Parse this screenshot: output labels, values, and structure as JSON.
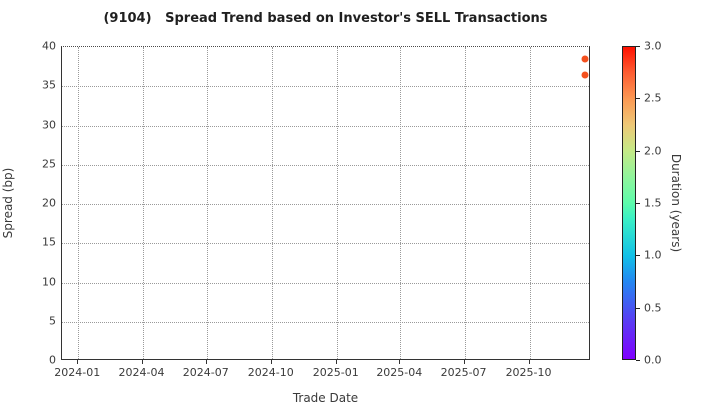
{
  "title": "(9104)   Spread Trend based on Investor's SELL Transactions",
  "colors": {
    "point": "#f4511f",
    "grid": "#9a9a9a",
    "spine": "#333333",
    "text": "#3a3a3a"
  },
  "chart_data": {
    "type": "scatter",
    "title": "(9104)   Spread Trend based on Investor's SELL Transactions",
    "xlabel": "Trade Date",
    "ylabel": "Spread (bp)",
    "ylim": [
      0,
      40
    ],
    "yticks": [
      0,
      5,
      10,
      15,
      20,
      25,
      30,
      35,
      40
    ],
    "xticks": [
      "2024-01",
      "2024-04",
      "2024-07",
      "2024-10",
      "2025-01",
      "2025-04",
      "2025-07",
      "2025-10"
    ],
    "x_domain": [
      "2023-12-09",
      "2025-12-27"
    ],
    "grid": true,
    "legend_position": "none",
    "points": [
      {
        "date": "2025-12-19",
        "spread": 38.5,
        "duration_years": 2.8
      },
      {
        "date": "2025-12-19",
        "spread": 36.4,
        "duration_years": 2.8
      }
    ],
    "colorbar": {
      "label": "Duration (years)",
      "min": 0.0,
      "max": 3.0,
      "ticks": [
        "0.0",
        "0.5",
        "1.0",
        "1.5",
        "2.0",
        "2.5",
        "3.0"
      ],
      "colormap": "rainbow (purple->blue->cyan->green->orange->red)"
    }
  }
}
